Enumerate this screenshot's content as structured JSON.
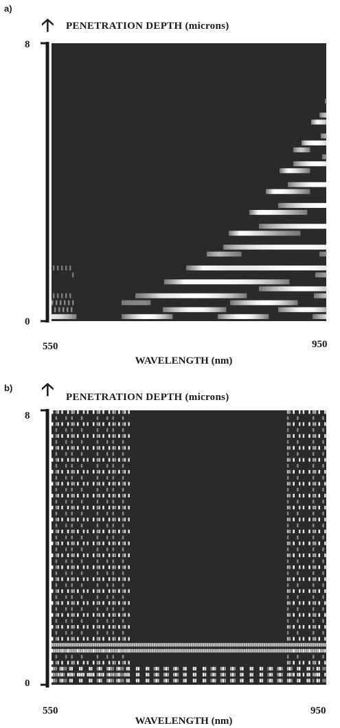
{
  "chart_data": [
    {
      "panel_label": "a)",
      "type": "heatmap",
      "ylabel": "PENETRATION DEPTH (microns)",
      "xlabel": "WAVELENGTH (nm)",
      "x_ticks": [
        "550",
        "950"
      ],
      "y_ticks": [
        "0",
        "8"
      ],
      "xlim": [
        550,
        950
      ],
      "ylim": [
        0,
        8
      ],
      "pattern": "bright interference fringes near the bottom and fanning upward toward long wavelengths; dark elsewhere",
      "colors": {
        "background": "#2a2a2a",
        "fringe": "#ffffff",
        "axis": "#1a1a1a"
      }
    },
    {
      "panel_label": "b)",
      "type": "heatmap",
      "ylabel": "PENETRATION DEPTH (microns)",
      "xlabel": "WAVELENGTH (nm)",
      "x_ticks": [
        "550",
        "950"
      ],
      "y_ticks": [
        "0",
        "8"
      ],
      "xlim": [
        550,
        950
      ],
      "ylim": [
        0,
        8
      ],
      "pattern": "bright checkered fringes at 550–600 nm and 890–950 nm across all depths; horizontal bands near 0–0.6 µm; dark between",
      "colors": {
        "background": "#2a2a2a",
        "fringe": "#ffffff",
        "axis": "#1a1a1a"
      }
    }
  ]
}
